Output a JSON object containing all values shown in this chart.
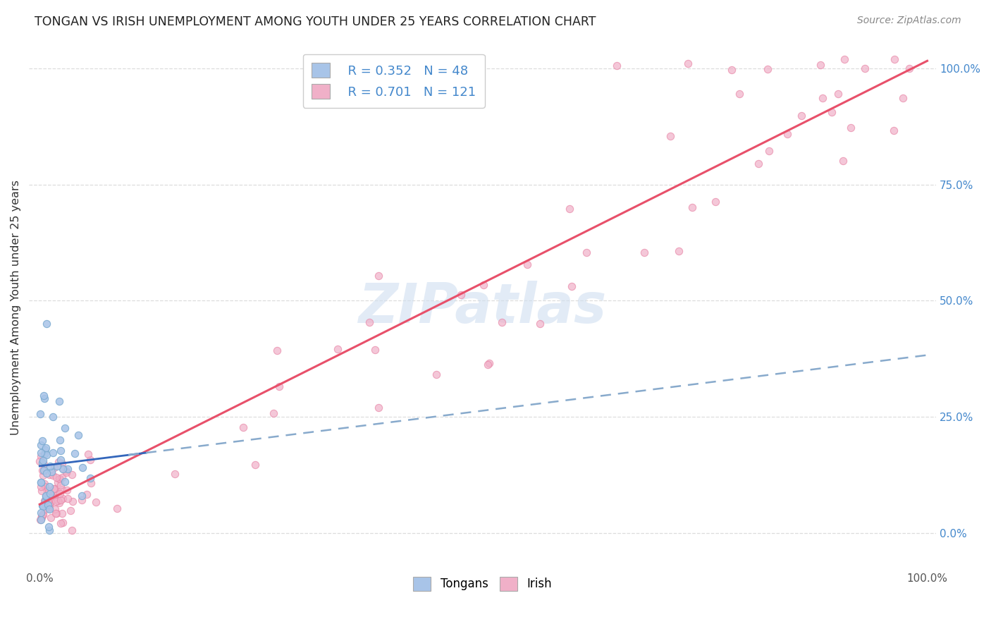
{
  "title": "TONGAN VS IRISH UNEMPLOYMENT AMONG YOUTH UNDER 25 YEARS CORRELATION CHART",
  "source": "Source: ZipAtlas.com",
  "ylabel": "Unemployment Among Youth under 25 years",
  "tongan_color": "#a8c4e8",
  "tongan_edge_color": "#7aaad0",
  "irish_color": "#f0b0c8",
  "irish_edge_color": "#e888a8",
  "tongan_line_color": "#3366bb",
  "tongan_dash_color": "#88aacc",
  "irish_line_color": "#e8506a",
  "watermark_color": "#d0dff0",
  "right_tick_color": "#4488cc",
  "legend_R_color": "#4488cc",
  "legend_N_color": "#ee4444",
  "background_color": "#ffffff",
  "grid_color": "#dddddd",
  "title_color": "#222222",
  "source_color": "#888888",
  "ylabel_color": "#333333",
  "legend_R_tongan": "R = 0.352",
  "legend_N_tongan": "N = 48",
  "legend_R_irish": "R = 0.701",
  "legend_N_irish": "N = 121",
  "xlim": [
    0,
    1.0
  ],
  "ylim": [
    -0.08,
    1.05
  ]
}
